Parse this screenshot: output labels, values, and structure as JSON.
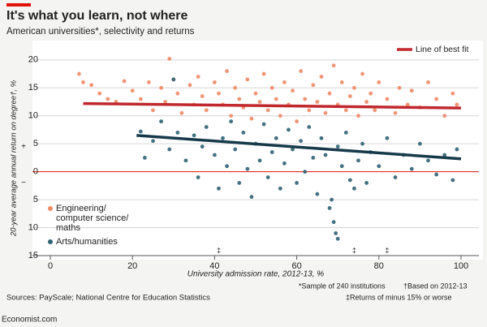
{
  "chart_data": {
    "type": "scatter",
    "title": "It's what you learn, not where",
    "subtitle": "American universities*, selectivity and returns",
    "x_label": "University admission rate, 2012-13, %",
    "y_label": "20-year average annual return on degree†, %",
    "y_sign_labels": [
      "+",
      "−"
    ],
    "xlim": [
      0,
      100
    ],
    "xticks": [
      0,
      20,
      40,
      60,
      80,
      100
    ],
    "ylim": [
      -15,
      20.7
    ],
    "yticks": [
      {
        "value": -15,
        "label": "15"
      },
      {
        "value": -10,
        "label": "10"
      },
      {
        "value": -5,
        "label": "5"
      },
      0,
      5,
      10,
      15,
      20
    ],
    "grid": true,
    "series": [
      {
        "name": [
          "Engineering/",
          "computer science/",
          "maths"
        ],
        "color": "#ee8a66",
        "x": [
          7,
          8,
          10,
          12,
          14,
          16,
          18,
          20,
          22,
          24,
          25,
          27,
          28,
          29,
          30,
          31,
          32,
          34,
          35,
          36,
          37,
          38,
          40,
          41,
          42,
          43,
          44,
          45,
          46,
          47,
          48,
          49,
          50,
          51,
          52,
          53,
          54,
          55,
          56,
          57,
          58,
          59,
          60,
          61,
          62,
          63,
          64,
          65,
          66,
          67,
          68,
          69,
          70,
          71,
          72,
          73,
          74,
          75,
          76,
          77,
          78,
          79,
          80,
          82,
          84,
          85,
          87,
          88,
          90,
          92,
          94,
          96,
          98,
          99
        ],
        "values": [
          17.5,
          16,
          15.5,
          14,
          13,
          12.5,
          16.2,
          14.5,
          13,
          16,
          11,
          15,
          12.5,
          20.2,
          16.5,
          14,
          10.5,
          15.5,
          12,
          17,
          13.5,
          11,
          16,
          14,
          12,
          18,
          10,
          15,
          13,
          11.5,
          16.5,
          9.5,
          14,
          12.5,
          17.5,
          11,
          15,
          13,
          10,
          16,
          12,
          14.5,
          9,
          18,
          13,
          11,
          15.5,
          12.5,
          17,
          10.5,
          14,
          19,
          12,
          16,
          11,
          13.5,
          15,
          10,
          17.5,
          12.5,
          14,
          11,
          16,
          13,
          10.5,
          15,
          12,
          14.5,
          11.5,
          16,
          13,
          10,
          14,
          12
        ]
      },
      {
        "name": "Arts/humanities",
        "color": "#2f6273",
        "x": [
          22,
          23,
          25,
          27,
          29,
          30,
          31,
          33,
          35,
          36,
          37,
          38,
          40,
          41,
          42,
          43,
          44,
          45,
          46,
          47,
          48,
          49,
          50,
          51,
          52,
          53,
          54,
          55,
          56,
          57,
          58,
          59,
          60,
          61,
          62,
          63,
          64,
          65,
          66,
          67,
          68,
          68.5,
          69,
          69.5,
          70,
          70,
          71,
          72,
          73,
          74,
          75,
          76,
          77,
          78,
          80,
          82,
          84,
          86,
          88,
          90,
          92,
          94,
          96,
          98,
          99
        ],
        "values": [
          7.2,
          2.5,
          5.5,
          9,
          4,
          16.5,
          7,
          2,
          6.5,
          -1,
          4.5,
          8,
          3,
          -3,
          6,
          1,
          9,
          4,
          -2,
          7,
          0.5,
          -4.5,
          5,
          2,
          8.5,
          -1,
          3.5,
          6,
          -3,
          1.5,
          7.5,
          4,
          -2,
          5.5,
          0,
          8,
          2.5,
          -4,
          6,
          3,
          -6.5,
          -5,
          -9,
          -11,
          -12,
          4.5,
          1,
          7,
          -1.5,
          -3,
          2,
          5,
          -2,
          3.5,
          1,
          6,
          -1,
          3,
          0.5,
          5,
          2,
          -0.5,
          3,
          -1.5,
          4
        ]
      }
    ],
    "fit_legend": "Line of best fit",
    "fit_lines": [
      {
        "color": "#c0282d",
        "x": [
          8,
          100
        ],
        "y": [
          12.2,
          11.4
        ]
      },
      {
        "color": "#173a4a",
        "x": [
          21,
          100
        ],
        "y": [
          6.5,
          2.3
        ]
      }
    ],
    "dagger": {
      "label": "‡",
      "x": [
        41,
        74,
        82
      ]
    },
    "source": "Sources: PayScale; National Centre for Education Statistics",
    "notes": [
      "*Sample of 240 institutions",
      "†Based on 2012-13",
      "‡Returns of minus 15% or worse"
    ],
    "credit": "Economist.com"
  }
}
